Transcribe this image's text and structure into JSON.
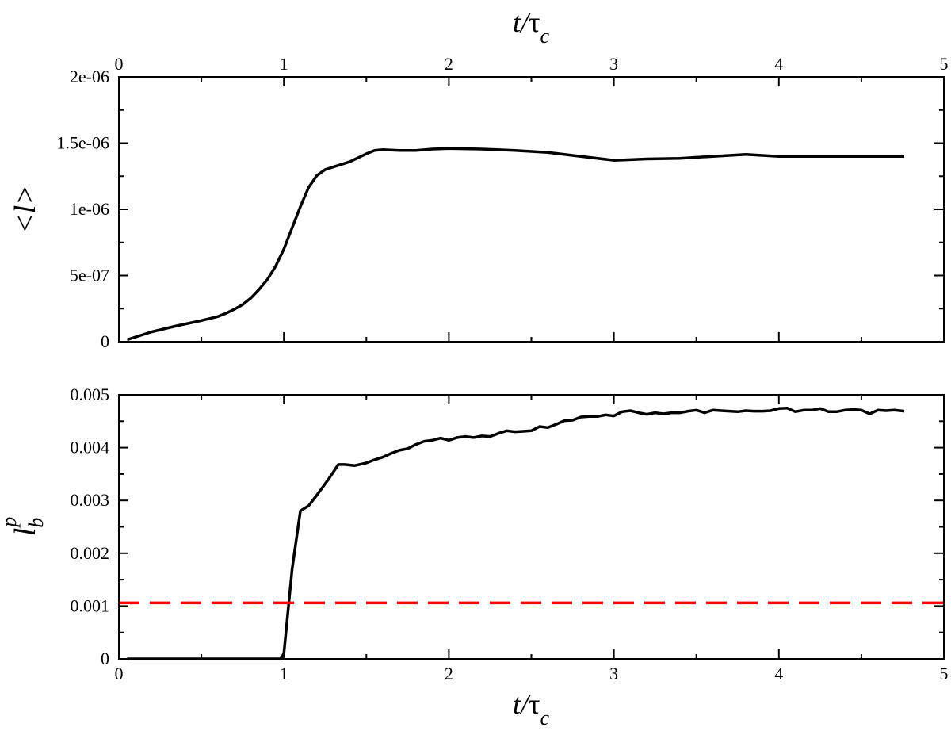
{
  "chart_data": [
    {
      "type": "line",
      "panel": "top",
      "top_xlabel": {
        "main": "t/",
        "greek": "τ",
        "sub": "c"
      },
      "ylabel": "<l>",
      "xlim": [
        0,
        5
      ],
      "ylim": [
        0,
        2e-06
      ],
      "x_ticks": [
        0,
        1,
        2,
        3,
        4,
        5
      ],
      "x_tick_labels": [
        "0",
        "1",
        "2",
        "3",
        "4",
        "5"
      ],
      "y_ticks": [
        0,
        5e-07,
        1e-06,
        1.5e-06,
        2e-06
      ],
      "y_tick_labels": [
        "0",
        "5e-07",
        "1e-06",
        "1.5e-06",
        "2e-06"
      ],
      "series": [
        {
          "color": "#000000",
          "style": "solid",
          "x": [
            0.05,
            0.2,
            0.35,
            0.5,
            0.6,
            0.65,
            0.7,
            0.75,
            0.8,
            0.85,
            0.9,
            0.95,
            1.0,
            1.05,
            1.1,
            1.15,
            1.2,
            1.25,
            1.3,
            1.4,
            1.5,
            1.55,
            1.6,
            1.7,
            1.8,
            1.9,
            2.0,
            2.2,
            2.4,
            2.6,
            2.8,
            3.0,
            3.2,
            3.4,
            3.6,
            3.8,
            4.0,
            4.2,
            4.4,
            4.6,
            4.76
          ],
          "y": [
            1.5e-08,
            7.5e-08,
            1.2e-07,
            1.6e-07,
            1.9e-07,
            2.15e-07,
            2.45e-07,
            2.8e-07,
            3.3e-07,
            3.95e-07,
            4.7e-07,
            5.7e-07,
            7e-07,
            8.6e-07,
            1.02e-06,
            1.165e-06,
            1.255e-06,
            1.3e-06,
            1.32e-06,
            1.36e-06,
            1.42e-06,
            1.445e-06,
            1.45e-06,
            1.445e-06,
            1.445e-06,
            1.455e-06,
            1.46e-06,
            1.455e-06,
            1.445e-06,
            1.43e-06,
            1.4e-06,
            1.37e-06,
            1.38e-06,
            1.385e-06,
            1.4e-06,
            1.415e-06,
            1.4e-06,
            1.4e-06,
            1.4e-06,
            1.4e-06,
            1.4e-06
          ]
        }
      ]
    },
    {
      "type": "line",
      "panel": "bottom",
      "xlabel": {
        "main": "t/",
        "greek": "τ",
        "sub": "c"
      },
      "ylabel": {
        "main": "l",
        "sub": "b",
        "sup": "p"
      },
      "xlim": [
        0,
        5
      ],
      "ylim": [
        0,
        0.005
      ],
      "x_ticks": [
        0,
        1,
        2,
        3,
        4,
        5
      ],
      "x_tick_labels": [
        "0",
        "1",
        "2",
        "3",
        "4",
        "5"
      ],
      "y_ticks": [
        0,
        0.001,
        0.002,
        0.003,
        0.004,
        0.005
      ],
      "y_tick_labels": [
        "0",
        "0.001",
        "0.002",
        "0.003",
        "0.004",
        "0.005"
      ],
      "series": [
        {
          "color": "#000000",
          "style": "solid",
          "x": [
            0.05,
            0.98,
            1.0,
            1.05,
            1.1,
            1.15,
            1.2,
            1.27,
            1.33,
            1.37,
            1.4,
            1.43,
            1.5,
            1.55,
            1.6,
            1.65,
            1.7,
            1.75,
            1.8,
            1.85,
            1.9,
            1.95,
            2.0,
            2.05,
            2.1,
            2.15,
            2.2,
            2.25,
            2.3,
            2.35,
            2.4,
            2.45,
            2.5,
            2.55,
            2.6,
            2.65,
            2.7,
            2.75,
            2.8,
            2.85,
            2.9,
            2.95,
            3.0,
            3.05,
            3.1,
            3.15,
            3.2,
            3.25,
            3.3,
            3.35,
            3.4,
            3.45,
            3.5,
            3.55,
            3.6,
            3.65,
            3.7,
            3.75,
            3.8,
            3.85,
            3.9,
            3.95,
            4.0,
            4.05,
            4.1,
            4.15,
            4.2,
            4.25,
            4.3,
            4.35,
            4.4,
            4.45,
            4.5,
            4.55,
            4.6,
            4.65,
            4.7,
            4.76
          ],
          "y": [
            0,
            0,
            0.0001,
            0.0017,
            0.0028,
            0.0029,
            0.0031,
            0.0034,
            0.00368,
            0.00368,
            0.00367,
            0.00366,
            0.00371,
            0.00377,
            0.00382,
            0.00389,
            0.00395,
            0.00398,
            0.00406,
            0.00412,
            0.00414,
            0.00418,
            0.00414,
            0.00419,
            0.00421,
            0.00419,
            0.00422,
            0.00421,
            0.00427,
            0.00432,
            0.0043,
            0.00431,
            0.00432,
            0.0044,
            0.00438,
            0.00444,
            0.00451,
            0.00452,
            0.00458,
            0.00459,
            0.00459,
            0.00462,
            0.0046,
            0.00468,
            0.0047,
            0.00466,
            0.00463,
            0.00466,
            0.00464,
            0.00466,
            0.00466,
            0.00469,
            0.00471,
            0.00466,
            0.00471,
            0.0047,
            0.00469,
            0.00468,
            0.0047,
            0.00469,
            0.00469,
            0.0047,
            0.00474,
            0.00475,
            0.00468,
            0.00471,
            0.00471,
            0.00474,
            0.00468,
            0.00468,
            0.00471,
            0.00472,
            0.00471,
            0.00464,
            0.00471,
            0.0047,
            0.00471,
            0.00469
          ]
        },
        {
          "color": "#ff0000",
          "style": "dashed",
          "x": [
            0,
            5
          ],
          "y": [
            0.00106,
            0.00106
          ]
        }
      ]
    }
  ]
}
